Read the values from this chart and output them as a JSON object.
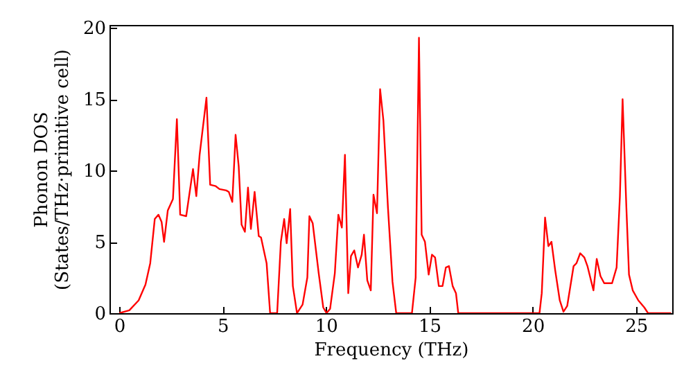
{
  "chart_data": {
    "type": "line",
    "xlabel": "Frequency (THz)",
    "ylabel": "Phonon DOS\n(States/THz·primitive cell)",
    "xlim": [
      -0.47,
      26.75
    ],
    "ylim": [
      0,
      20.2
    ],
    "xticks": [
      0,
      5,
      10,
      15,
      20,
      25
    ],
    "yticks": [
      0,
      5,
      10,
      15,
      20
    ],
    "grid": false,
    "marker": "none",
    "line_style": "solid",
    "series": [
      {
        "color": "#ff0000",
        "x": [
          0,
          0.49,
          0.94,
          1.27,
          1.5,
          1.72,
          1.9,
          2.05,
          2.17,
          2.35,
          2.6,
          2.79,
          2.95,
          3.24,
          3.57,
          3.73,
          3.89,
          4.22,
          4.4,
          4.67,
          4.85,
          5.18,
          5.3,
          5.47,
          5.63,
          5.78,
          5.92,
          6.08,
          6.23,
          6.37,
          6.55,
          6.75,
          6.86,
          7.13,
          7.3,
          7.64,
          7.82,
          7.98,
          8.1,
          8.27,
          8.4,
          8.6,
          8.87,
          9.1,
          9.2,
          9.36,
          9.65,
          9.87,
          10.03,
          10.2,
          10.43,
          10.6,
          10.77,
          10.92,
          11.08,
          11.21,
          11.37,
          11.55,
          11.73,
          11.84,
          12.0,
          12.17,
          12.3,
          12.47,
          12.62,
          12.78,
          13.0,
          13.22,
          13.4,
          14.16,
          14.34,
          14.5,
          14.63,
          14.79,
          14.97,
          15.13,
          15.28,
          15.46,
          15.64,
          15.8,
          15.95,
          16.13,
          16.29,
          16.4,
          20.33,
          20.44,
          20.6,
          20.76,
          20.91,
          21.09,
          21.31,
          21.49,
          21.67,
          21.98,
          22.12,
          22.3,
          22.5,
          22.65,
          22.94,
          23.1,
          23.28,
          23.46,
          23.84,
          24.06,
          24.22,
          24.35,
          24.53,
          24.66,
          24.84,
          25.11,
          25.4,
          25.58,
          26.7
        ],
        "values": [
          0,
          0.2,
          0.9,
          2.0,
          3.5,
          6.6,
          6.9,
          6.4,
          5.0,
          7.2,
          8.0,
          13.6,
          6.9,
          6.8,
          10.1,
          8.2,
          11.1,
          15.1,
          9.0,
          8.9,
          8.7,
          8.6,
          8.5,
          7.8,
          12.5,
          10.3,
          6.2,
          5.7,
          8.8,
          5.9,
          8.5,
          5.4,
          5.3,
          3.5,
          0,
          0,
          5.0,
          6.6,
          4.9,
          7.3,
          1.9,
          0,
          0.6,
          2.5,
          6.8,
          6.3,
          2.8,
          0.4,
          0,
          0.3,
          2.8,
          6.9,
          6.0,
          11.1,
          1.4,
          4.0,
          4.4,
          3.2,
          4.1,
          5.5,
          2.3,
          1.6,
          8.3,
          7.0,
          15.7,
          13.5,
          7.4,
          2.2,
          0,
          0,
          2.5,
          19.3,
          5.5,
          5.0,
          2.7,
          4.1,
          3.9,
          1.9,
          1.9,
          3.2,
          3.3,
          1.9,
          1.4,
          0,
          0,
          1.4,
          6.7,
          4.7,
          5.0,
          3.0,
          0.9,
          0.1,
          0.5,
          3.3,
          3.5,
          4.2,
          3.9,
          3.3,
          1.6,
          3.8,
          2.6,
          2.1,
          2.1,
          3.2,
          8.2,
          15.0,
          7.5,
          2.7,
          1.6,
          0.9,
          0.4,
          0,
          0
        ]
      }
    ]
  }
}
